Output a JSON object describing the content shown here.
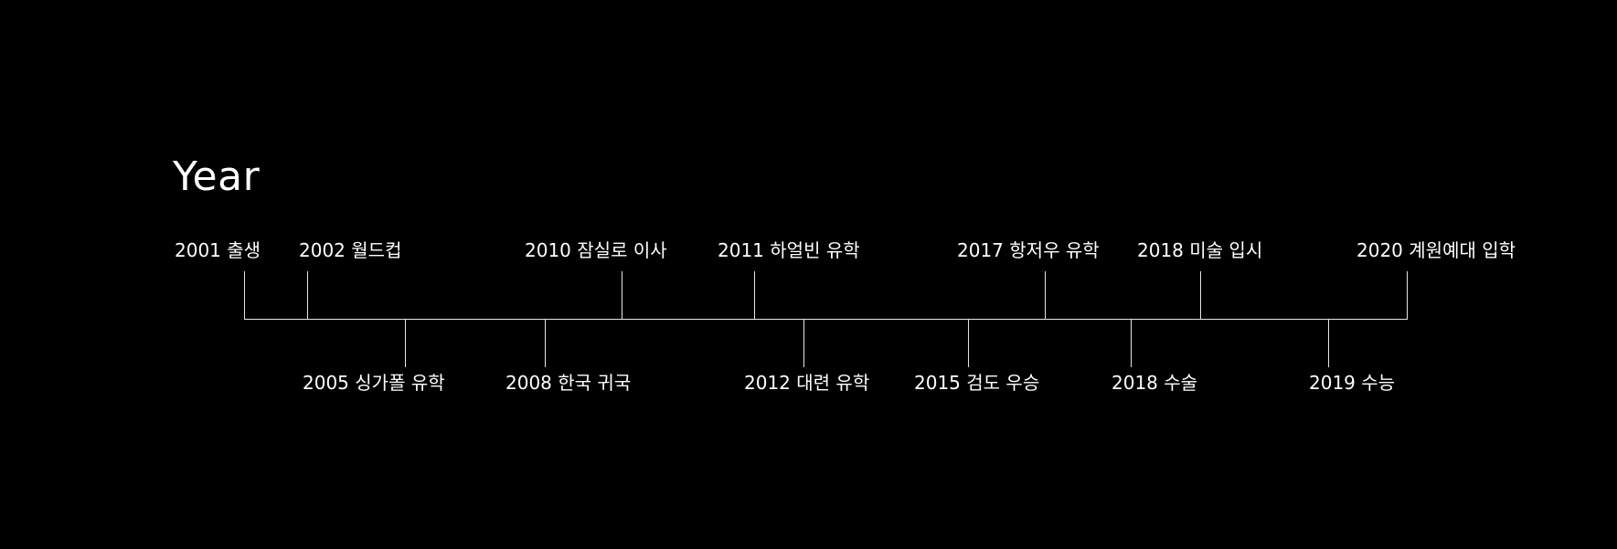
{
  "title": "Year",
  "events_above": [
    {
      "year": "2001",
      "text": "출생"
    },
    {
      "year": "2002",
      "text": "월드컵"
    },
    {
      "year": "2010",
      "text": "잠실로 이사"
    },
    {
      "year": "2011",
      "text": "하얼빈 유학"
    },
    {
      "year": "2017",
      "text": "항저우 유학"
    },
    {
      "year": "2018",
      "text": "미술 입시"
    },
    {
      "year": "2020",
      "text": "계원예대 입학"
    }
  ],
  "events_below": [
    {
      "year": "2005",
      "text": "싱가폴 유학"
    },
    {
      "year": "2008",
      "text": "한국 귀국"
    },
    {
      "year": "2012",
      "text": "대련 유학"
    },
    {
      "year": "2015",
      "text": "검도 우승"
    },
    {
      "year": "2018",
      "text": "수술"
    },
    {
      "year": "2019",
      "text": "수능"
    }
  ],
  "colors": {
    "background": "#000000",
    "line": "#e6e6e6",
    "text": "#ffffff"
  }
}
